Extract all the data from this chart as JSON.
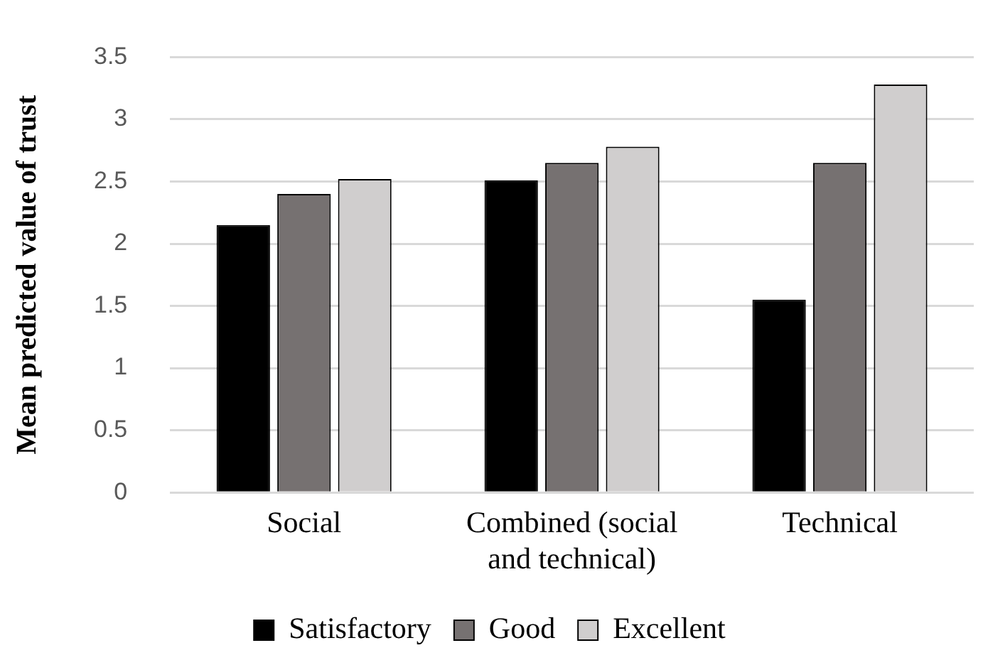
{
  "chart_data": {
    "type": "bar",
    "ylabel": "Mean predicted value of trust",
    "categories": [
      "Social",
      "Combined (social and technical)",
      "Technical"
    ],
    "series": [
      {
        "name": "Satisfactory",
        "color": "#000000",
        "values": [
          2.15,
          2.51,
          1.55
        ]
      },
      {
        "name": "Good",
        "color": "#767171",
        "values": [
          2.4,
          2.65,
          2.65
        ]
      },
      {
        "name": "Excellent",
        "color": "#d0cece",
        "values": [
          2.52,
          2.78,
          3.28
        ]
      }
    ],
    "ylim": [
      0,
      3.5
    ],
    "yticks": [
      0,
      0.5,
      1,
      1.5,
      2,
      2.5,
      3,
      3.5
    ],
    "grid": "y",
    "legend": "bottom"
  }
}
